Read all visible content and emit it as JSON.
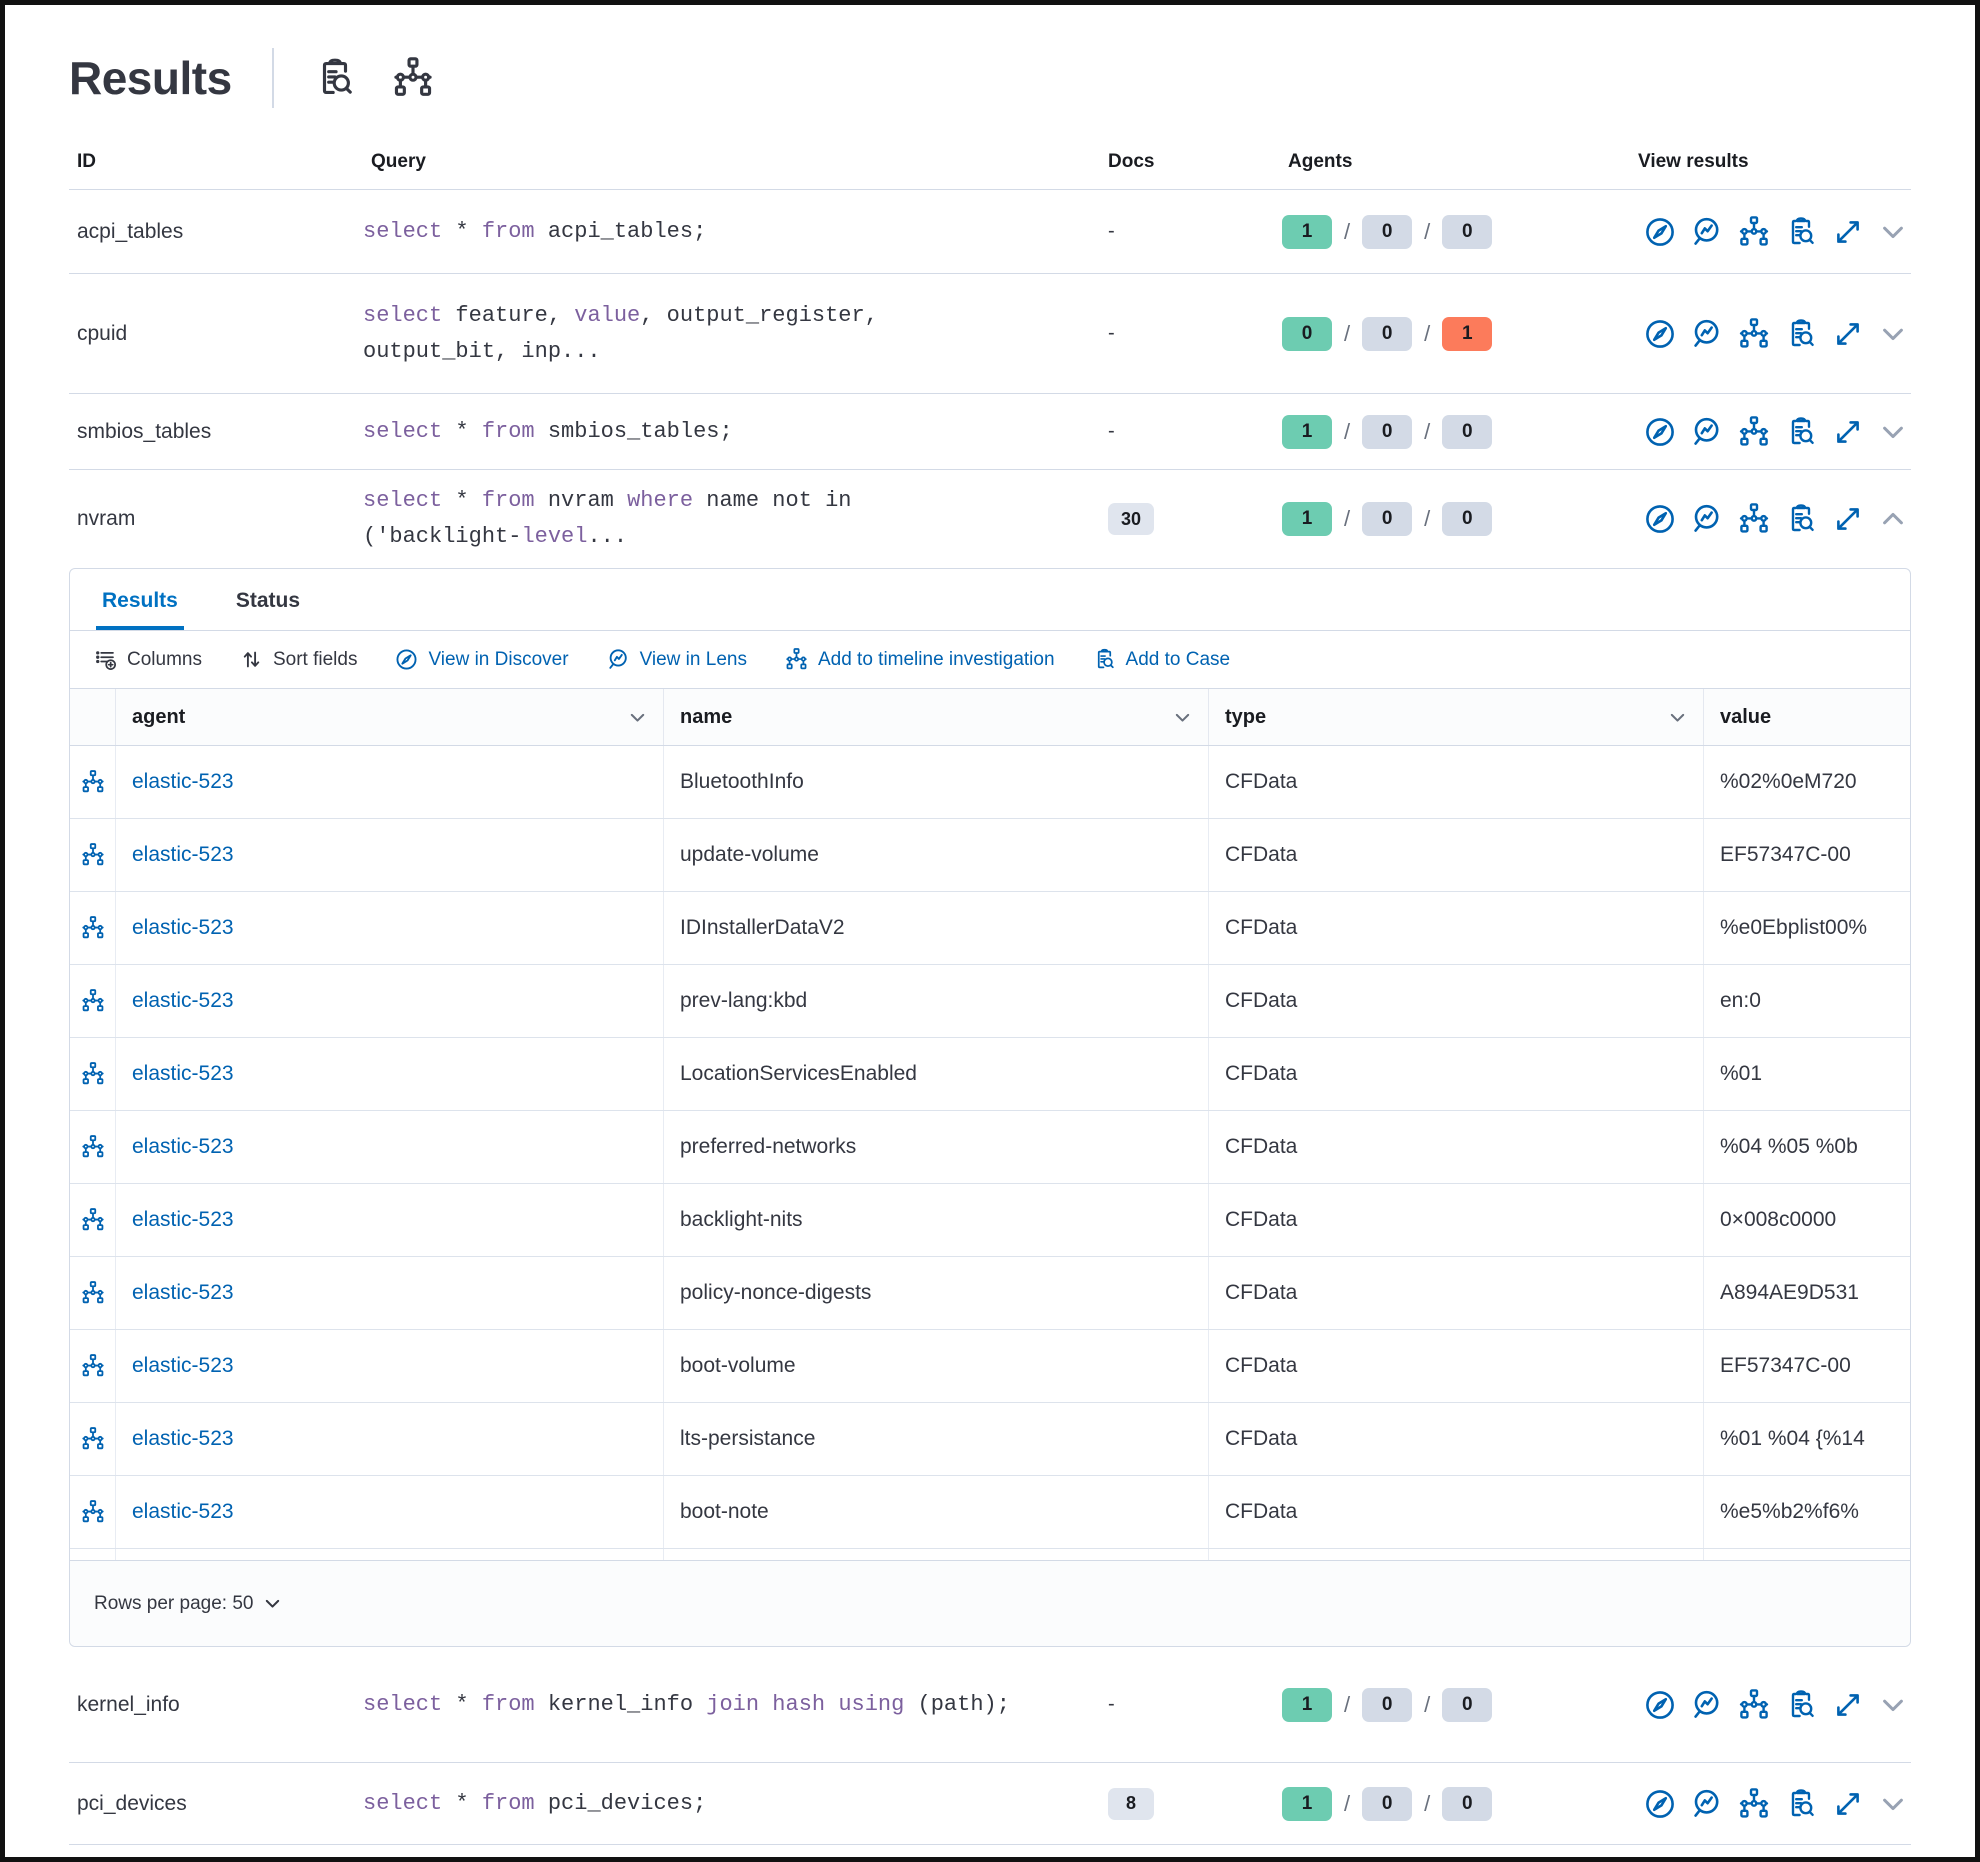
{
  "title": "Results",
  "table": {
    "headers": {
      "id": "ID",
      "query": "Query",
      "docs": "Docs",
      "agents": "Agents",
      "view_results": "View results"
    },
    "agents_separator": "/",
    "rows_top": [
      {
        "id": "acpi_tables",
        "query_lines": [
          [
            {
              "text": "select",
              "kw": true
            },
            {
              "text": " * "
            },
            {
              "text": "from",
              "kw": true
            },
            {
              "text": " acpi_tables;"
            }
          ]
        ],
        "docs": "-",
        "docs_badge": false,
        "agents": [
          {
            "value": "1",
            "status": "success"
          },
          {
            "value": "0",
            "status": "neutral"
          },
          {
            "value": "0",
            "status": "neutral"
          }
        ],
        "expanded": false
      },
      {
        "id": "cpuid",
        "query_lines": [
          [
            {
              "text": "select",
              "kw": true
            },
            {
              "text": " feature, "
            },
            {
              "text": "value",
              "kw": true
            },
            {
              "text": ", output_register,"
            }
          ],
          [
            {
              "text": "output_bit, inp..."
            }
          ]
        ],
        "docs": "-",
        "docs_badge": false,
        "agents": [
          {
            "value": "0",
            "status": "success"
          },
          {
            "value": "0",
            "status": "neutral"
          },
          {
            "value": "1",
            "status": "danger"
          }
        ],
        "expanded": false
      },
      {
        "id": "smbios_tables",
        "query_lines": [
          [
            {
              "text": "select",
              "kw": true
            },
            {
              "text": " * "
            },
            {
              "text": "from",
              "kw": true
            },
            {
              "text": " smbios_tables;"
            }
          ]
        ],
        "docs": "-",
        "docs_badge": false,
        "agents": [
          {
            "value": "1",
            "status": "success"
          },
          {
            "value": "0",
            "status": "neutral"
          },
          {
            "value": "0",
            "status": "neutral"
          }
        ],
        "expanded": false
      },
      {
        "id": "nvram",
        "query_lines": [
          [
            {
              "text": "select",
              "kw": true
            },
            {
              "text": " * "
            },
            {
              "text": "from",
              "kw": true
            },
            {
              "text": " nvram "
            },
            {
              "text": "where",
              "kw": true
            },
            {
              "text": " name not in"
            }
          ],
          [
            {
              "text": "('backlight-"
            },
            {
              "text": "level",
              "kw": true
            },
            {
              "text": "..."
            }
          ]
        ],
        "docs": "30",
        "docs_badge": true,
        "agents": [
          {
            "value": "1",
            "status": "success"
          },
          {
            "value": "0",
            "status": "neutral"
          },
          {
            "value": "0",
            "status": "neutral"
          }
        ],
        "expanded": true
      }
    ],
    "rows_bottom": [
      {
        "id": "kernel_info",
        "query_lines": [
          [
            {
              "text": "select",
              "kw": true
            },
            {
              "text": " * "
            },
            {
              "text": "from",
              "kw": true
            },
            {
              "text": " kernel_info "
            },
            {
              "text": "join",
              "kw": true
            },
            {
              "text": " "
            },
            {
              "text": "hash",
              "kw": true
            },
            {
              "text": " "
            },
            {
              "text": "using",
              "kw": true
            },
            {
              "text": " (path);"
            }
          ]
        ],
        "docs": "-",
        "docs_badge": false,
        "agents": [
          {
            "value": "1",
            "status": "success"
          },
          {
            "value": "0",
            "status": "neutral"
          },
          {
            "value": "0",
            "status": "neutral"
          }
        ],
        "expanded": false
      },
      {
        "id": "pci_devices",
        "query_lines": [
          [
            {
              "text": "select",
              "kw": true
            },
            {
              "text": " * "
            },
            {
              "text": "from",
              "kw": true
            },
            {
              "text": " pci_devices;"
            }
          ]
        ],
        "docs": "8",
        "docs_badge": true,
        "agents": [
          {
            "value": "1",
            "status": "success"
          },
          {
            "value": "0",
            "status": "neutral"
          },
          {
            "value": "0",
            "status": "neutral"
          }
        ],
        "expanded": false
      }
    ]
  },
  "panel": {
    "tabs": [
      {
        "label": "Results",
        "active": true
      },
      {
        "label": "Status",
        "active": false
      }
    ],
    "toolbar": [
      {
        "label": "Columns",
        "variant": "text",
        "icon": "columns-icon"
      },
      {
        "label": "Sort fields",
        "variant": "text",
        "icon": "sort-icon"
      },
      {
        "label": "View in Discover",
        "variant": "link",
        "icon": "discover-icon"
      },
      {
        "label": "View in Lens",
        "variant": "link",
        "icon": "lens-icon"
      },
      {
        "label": "Add to timeline investigation",
        "variant": "link",
        "icon": "timeline-icon"
      },
      {
        "label": "Add to Case",
        "variant": "link",
        "icon": "case-icon"
      }
    ],
    "grid": {
      "columns": [
        "agent",
        "name",
        "type",
        "value"
      ],
      "rows": [
        {
          "agent": "elastic-523",
          "name": "BluetoothInfo",
          "type": "CFData",
          "value": "%02%0eM720"
        },
        {
          "agent": "elastic-523",
          "name": "update-volume",
          "type": "CFData",
          "value": "EF57347C-00"
        },
        {
          "agent": "elastic-523",
          "name": "IDInstallerDataV2",
          "type": "CFData",
          "value": "%e0Ebplist00%"
        },
        {
          "agent": "elastic-523",
          "name": "prev-lang:kbd",
          "type": "CFData",
          "value": "en:0"
        },
        {
          "agent": "elastic-523",
          "name": "LocationServicesEnabled",
          "type": "CFData",
          "value": "%01"
        },
        {
          "agent": "elastic-523",
          "name": "preferred-networks",
          "type": "CFData",
          "value": "%04 %05 %0b"
        },
        {
          "agent": "elastic-523",
          "name": "backlight-nits",
          "type": "CFData",
          "value": "0×008c0000"
        },
        {
          "agent": "elastic-523",
          "name": "policy-nonce-digests",
          "type": "CFData",
          "value": "A894AE9D531"
        },
        {
          "agent": "elastic-523",
          "name": "boot-volume",
          "type": "CFData",
          "value": "EF57347C-00"
        },
        {
          "agent": "elastic-523",
          "name": "lts-persistance",
          "type": "CFData",
          "value": "%01 %04 {%14"
        },
        {
          "agent": "elastic-523",
          "name": "boot-note",
          "type": "CFData",
          "value": "%e5%b2%f6%"
        }
      ]
    },
    "footer": {
      "rows_per_page": "Rows per page: 50"
    }
  },
  "colors": {
    "primary_blue": "#0062b1",
    "tab_active_blue": "#0071c2",
    "keyword_purple": "#7c609e",
    "success_badge": "#6dccb1",
    "danger_badge": "#fc7b5b",
    "neutral_badge": "#d3dae6",
    "docs_badge": "#e0e5ee",
    "text": "#343741",
    "border": "#d3dae6"
  }
}
